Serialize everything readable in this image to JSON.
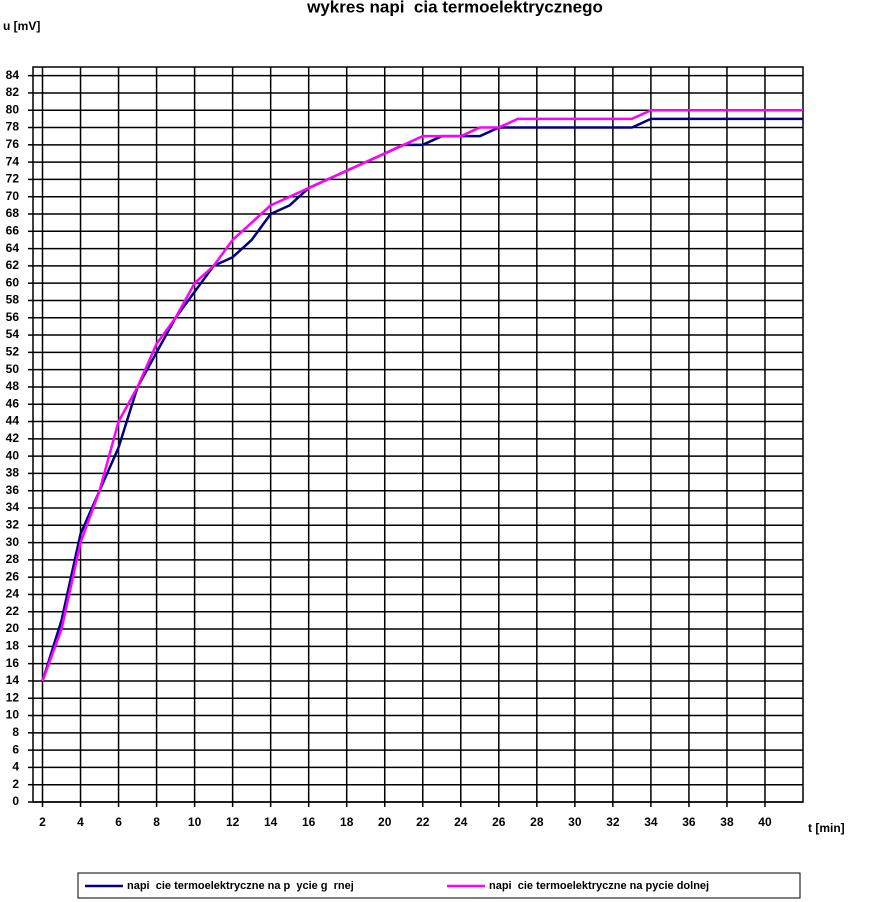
{
  "chart_data": {
    "type": "line",
    "title": "wykres napi  cia termoelektrycznego",
    "y_label": "u [mV]",
    "x_label": "t [min]",
    "x": [
      2,
      3,
      4,
      5,
      6,
      7,
      8,
      9,
      10,
      11,
      12,
      13,
      14,
      15,
      16,
      17,
      18,
      19,
      20,
      21,
      22,
      23,
      24,
      25,
      26,
      27,
      28,
      29,
      30,
      31,
      32,
      33,
      34,
      35,
      36,
      37,
      38,
      39,
      40,
      41,
      42
    ],
    "series": [
      {
        "name": "napi  cie termoelektryczne na p  ycie g  rnej",
        "color": "#000080",
        "values": [
          14,
          21,
          31,
          36,
          41,
          48,
          52,
          56,
          59,
          62,
          63,
          65,
          68,
          69,
          71,
          72,
          73,
          74,
          75,
          76,
          76,
          77,
          77,
          77,
          78,
          78,
          78,
          78,
          78,
          78,
          78,
          78,
          79,
          79,
          79,
          79,
          79,
          79,
          79,
          79,
          79
        ]
      },
      {
        "name": "napi  cie termoelektryczne na pycie dolnej",
        "color": "#ff00ff",
        "values": [
          14,
          20,
          30,
          36,
          44,
          48,
          53,
          56,
          60,
          62,
          65,
          67,
          69,
          70,
          71,
          72,
          73,
          74,
          75,
          76,
          77,
          77,
          77,
          78,
          78,
          79,
          79,
          79,
          79,
          79,
          79,
          79,
          80,
          80,
          80,
          80,
          80,
          80,
          80,
          80,
          80
        ]
      }
    ],
    "xlim": [
      1.5,
      42
    ],
    "ylim": [
      0,
      85
    ],
    "xticks": [
      2,
      4,
      6,
      8,
      10,
      12,
      14,
      16,
      18,
      20,
      22,
      24,
      26,
      28,
      30,
      32,
      34,
      36,
      38,
      40
    ],
    "yticks": [
      0,
      2,
      4,
      6,
      8,
      10,
      12,
      14,
      16,
      18,
      20,
      22,
      24,
      26,
      28,
      30,
      32,
      34,
      36,
      38,
      40,
      42,
      44,
      46,
      48,
      50,
      52,
      54,
      56,
      58,
      60,
      62,
      64,
      66,
      68,
      70,
      72,
      74,
      76,
      78,
      80,
      82,
      84
    ],
    "grid": true,
    "legend": "bottom"
  }
}
